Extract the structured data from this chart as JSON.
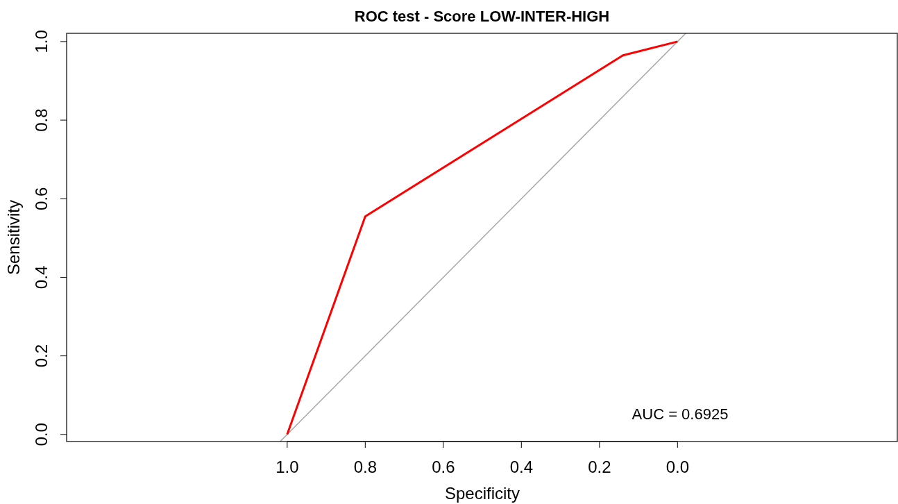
{
  "chart_data": {
    "type": "line",
    "title": "ROC test - Score LOW-INTER-HIGH",
    "xlabel": "Specificity",
    "ylabel": "Sensitivity",
    "annotations": [
      "AUC = 0.6925"
    ],
    "series": [
      {
        "color": "#a6a6a6",
        "x": [
          1.018,
          -0.021
        ],
        "values": [
          -0.018,
          1.021
        ]
      },
      {
        "color": "#ff0000",
        "x": [
          1.0,
          0.8,
          0.14,
          0.0
        ],
        "values": [
          0.0,
          0.555,
          0.965,
          1.0
        ]
      }
    ],
    "xlim": [
      1.565,
      -0.563
    ],
    "ylim": [
      -0.018,
      1.021
    ],
    "xticks": [
      {
        "value": 1,
        "label": "1.0"
      },
      {
        "value": 0.8,
        "label": "0.8"
      },
      {
        "value": 0.6,
        "label": "0.6"
      },
      {
        "value": 0.4,
        "label": "0.4"
      },
      {
        "value": 0.2,
        "label": "0.2"
      },
      {
        "value": 0,
        "label": "0.0"
      }
    ],
    "yticks": [
      {
        "value": 0,
        "label": "0.0"
      },
      {
        "value": 0.2,
        "label": "0.2"
      },
      {
        "value": 0.4,
        "label": "0.4"
      },
      {
        "value": 0.6,
        "label": "0.6"
      },
      {
        "value": 0.8,
        "label": "0.8"
      },
      {
        "value": 1,
        "label": "1.0"
      }
    ],
    "grid": false
  }
}
